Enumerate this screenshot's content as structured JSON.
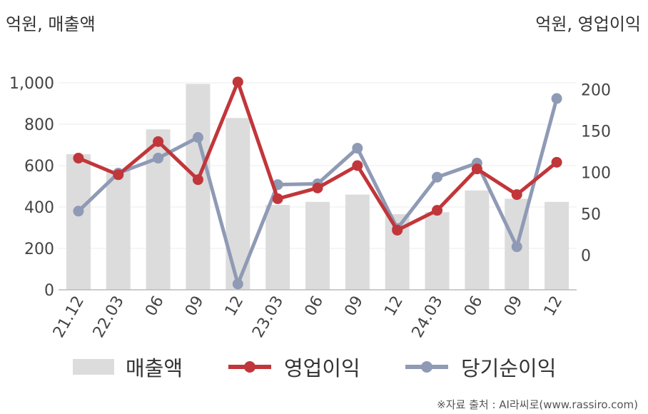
{
  "left_unit": "억원, 매출액",
  "right_unit": "억원, 영업이익",
  "source": "※자료 출처 : AI라씨로(www.rassiro.com)",
  "colors": {
    "revenue": "#dcdcdc",
    "operating_profit": "#c1363a",
    "net_income": "#8f9ab5"
  },
  "legend": [
    {
      "label": "매출액",
      "color": "#dcdcdc",
      "kind": "bar"
    },
    {
      "label": "영업이익",
      "color": "#c1363a",
      "kind": "line"
    },
    {
      "label": "당기순이익",
      "color": "#8f9ab5",
      "kind": "line"
    }
  ],
  "chart_data": {
    "type": "bar",
    "categories": [
      "21.12",
      "22.03",
      "06",
      "09",
      "12",
      "23.03",
      "06",
      "09",
      "12",
      "24.03",
      "06",
      "09",
      "12"
    ],
    "series": [
      {
        "name": "매출액",
        "type": "bar",
        "axis": "left",
        "values": [
          655,
          575,
          775,
          995,
          830,
          410,
          425,
          460,
          365,
          375,
          480,
          440,
          425
        ]
      },
      {
        "name": "영업이익",
        "type": "line",
        "axis": "right",
        "values": [
          117,
          97,
          137,
          91,
          209,
          68,
          81,
          108,
          30,
          54,
          104,
          73,
          112
        ]
      },
      {
        "name": "당기순이익",
        "type": "line",
        "axis": "right",
        "values": [
          53,
          99,
          117,
          142,
          -35,
          85,
          86,
          129,
          32,
          94,
          111,
          10,
          189
        ]
      }
    ],
    "y_left": {
      "ticks": [
        "0",
        "200",
        "400",
        "600",
        "800",
        "1,000"
      ],
      "ylim": [
        0,
        1000
      ]
    },
    "y_right": {
      "ticks": [
        "0",
        "50",
        "100",
        "150",
        "200"
      ],
      "ylim": [
        -42,
        208
      ]
    },
    "grid": true,
    "legend_position": "bottom"
  }
}
